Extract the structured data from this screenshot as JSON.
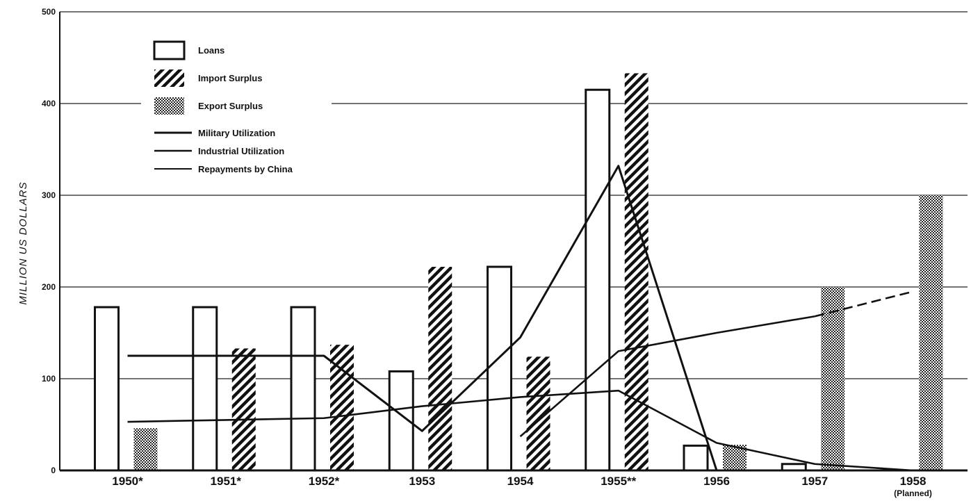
{
  "chart_data": {
    "type": "bar",
    "ylabel": "MILLION US DOLLARS",
    "ylim": [
      0,
      500
    ],
    "yticks": [
      "0",
      "100",
      "200",
      "300",
      "400",
      "500"
    ],
    "grid": "horizontal",
    "legend_position": "top-left",
    "categories": [
      "1950*",
      "1951*",
      "1952*",
      "1953",
      "1954",
      "1955**",
      "1956",
      "1957",
      "1958"
    ],
    "category_sublabels": [
      "",
      "",
      "",
      "",
      "",
      "",
      "",
      "",
      "(Planned)"
    ],
    "series": [
      {
        "name": "Loans",
        "kind": "bar",
        "pattern": "empty",
        "values": [
          178,
          178,
          178,
          108,
          222,
          415,
          27,
          7,
          null
        ]
      },
      {
        "name": "Import Surplus",
        "kind": "bar",
        "pattern": "hatched",
        "values": [
          null,
          133,
          137,
          222,
          124,
          433,
          null,
          null,
          null
        ]
      },
      {
        "name": "Export Surplus",
        "kind": "bar",
        "pattern": "crosshatch",
        "values": [
          46,
          null,
          null,
          null,
          null,
          null,
          28,
          200,
          300
        ]
      },
      {
        "name": "Military Utilization",
        "kind": "line",
        "values": [
          125,
          125,
          125,
          43,
          145,
          332,
          0,
          null,
          null
        ]
      },
      {
        "name": "Industrial Utilization",
        "kind": "line",
        "values": [
          null,
          null,
          null,
          null,
          37,
          130,
          150,
          168,
          195
        ],
        "planned_from_index": 7
      },
      {
        "name": "Repayments by China",
        "kind": "line",
        "values": [
          53,
          55,
          57,
          70,
          80,
          87,
          30,
          7,
          0
        ]
      }
    ]
  }
}
